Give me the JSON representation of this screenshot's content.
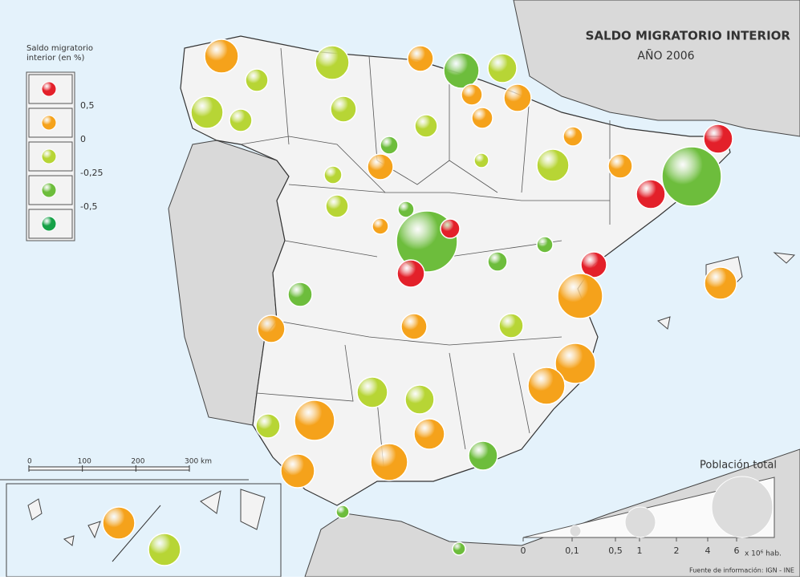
{
  "title": "SALDO MIGRATORIO INTERIOR",
  "subtitle": "AÑO 2006",
  "legend": {
    "title": [
      "Saldo migratorio",
      "interior (en %)"
    ],
    "colors": [
      "#e3202a",
      "#f5a21b",
      "#b7d535",
      "#6dbd3c",
      "#16a147"
    ],
    "labels": [
      "0,5",
      "0",
      "-0,25",
      "-0,5"
    ]
  },
  "scale_bar": {
    "ticks": [
      0,
      100,
      200,
      {
        "value": 300,
        "label": "300 km"
      }
    ]
  },
  "population": {
    "title": "Población total",
    "ticks": [
      0,
      {
        "value": 0.1,
        "label": "0,1"
      },
      {
        "value": 0.5,
        "label": "0,5"
      },
      1,
      2,
      4,
      6
    ],
    "unit": "x 10⁶ hab."
  },
  "source": "Fuente de información: IGN - INE"
}
